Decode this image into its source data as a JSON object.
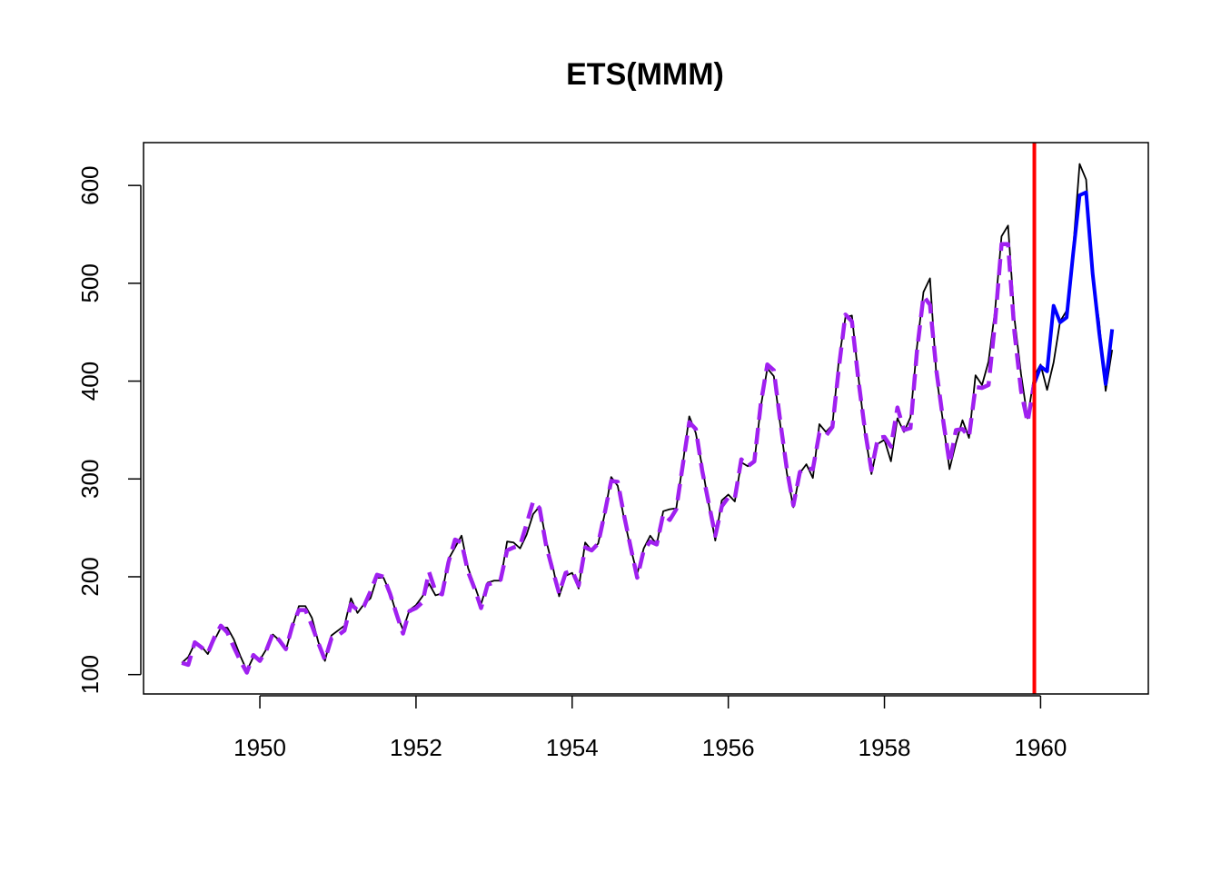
{
  "chart_data": {
    "type": "line",
    "title": "ETS(MMM)",
    "xlabel": "",
    "ylabel": "",
    "xlim": [
      1948.51,
      1961.38
    ],
    "ylim": [
      80.2,
      643.8
    ],
    "x_ticks": [
      1950,
      1952,
      1954,
      1956,
      1958,
      1960
    ],
    "y_ticks": [
      100,
      200,
      300,
      400,
      500,
      600
    ],
    "grid": false,
    "legend": "none",
    "x_start": 1949.0,
    "x_step": 0.08333333,
    "series": [
      {
        "name": "",
        "color": "#000000",
        "style": "solid",
        "values": [
          112,
          118,
          132,
          129,
          121,
          135,
          148,
          148,
          136,
          119,
          104,
          118,
          115,
          126,
          141,
          135,
          125,
          149,
          170,
          170,
          158,
          133,
          114,
          140,
          145,
          150,
          178,
          163,
          172,
          178,
          199,
          199,
          184,
          162,
          146,
          166,
          171,
          180,
          193,
          181,
          183,
          218,
          230,
          242,
          209,
          191,
          172,
          194,
          196,
          196,
          236,
          235,
          229,
          243,
          264,
          272,
          237,
          211,
          180,
          201,
          204,
          188,
          235,
          227,
          234,
          264,
          302,
          293,
          259,
          229,
          203,
          229,
          242,
          233,
          267,
          269,
          270,
          315,
          364,
          347,
          312,
          274,
          237,
          278,
          284,
          277,
          317,
          313,
          318,
          374,
          413,
          405,
          355,
          306,
          271,
          306,
          315,
          301,
          356,
          348,
          355,
          422,
          465,
          467,
          404,
          347,
          305,
          336,
          340,
          318,
          362,
          348,
          363,
          435,
          491,
          505,
          404,
          359,
          310,
          337,
          360,
          342,
          406,
          396,
          420,
          472,
          548,
          559,
          463,
          407,
          362,
          405,
          417,
          391,
          419,
          461,
          472,
          535,
          622,
          606,
          508,
          461,
          390,
          432
        ]
      },
      {
        "name": "",
        "color": "#a020f0",
        "style": "dashed",
        "values": [
          112,
          110,
          133,
          128,
          122,
          138,
          150,
          143,
          128,
          114,
          102,
          120,
          114,
          125,
          142,
          135,
          126,
          150,
          166,
          166,
          150,
          132,
          115,
          137,
          140,
          145,
          172,
          166,
          170,
          185,
          202,
          200,
          183,
          162,
          142,
          165,
          168,
          174,
          205,
          185,
          182,
          215,
          238,
          235,
          205,
          188,
          168,
          192,
          194,
          197,
          227,
          230,
          232,
          254,
          277,
          270,
          232,
          207,
          183,
          204,
          206,
          191,
          230,
          227,
          234,
          265,
          298,
          297,
          262,
          230,
          199,
          227,
          236,
          233,
          264,
          258,
          269,
          314,
          358,
          351,
          308,
          275,
          242,
          272,
          281,
          280,
          320,
          313,
          318,
          377,
          417,
          411,
          358,
          310,
          273,
          307,
          311,
          310,
          347,
          344,
          353,
          414,
          468,
          461,
          401,
          350,
          309,
          342,
          343,
          333,
          373,
          350,
          352,
          431,
          487,
          478,
          410,
          361,
          316,
          350,
          351,
          343,
          394,
          393,
          396,
          460,
          540,
          540,
          449,
          390,
          358,
          397
        ]
      },
      {
        "name": "",
        "color": "#0000ff",
        "style": "solid",
        "x_start": 1959.9167,
        "values": [
          397,
          415,
          410,
          477,
          460,
          465,
          530,
          590,
          593,
          510,
          450,
          397,
          453
        ]
      }
    ],
    "vline": {
      "x": 1959.92,
      "color": "#ff0000"
    }
  }
}
